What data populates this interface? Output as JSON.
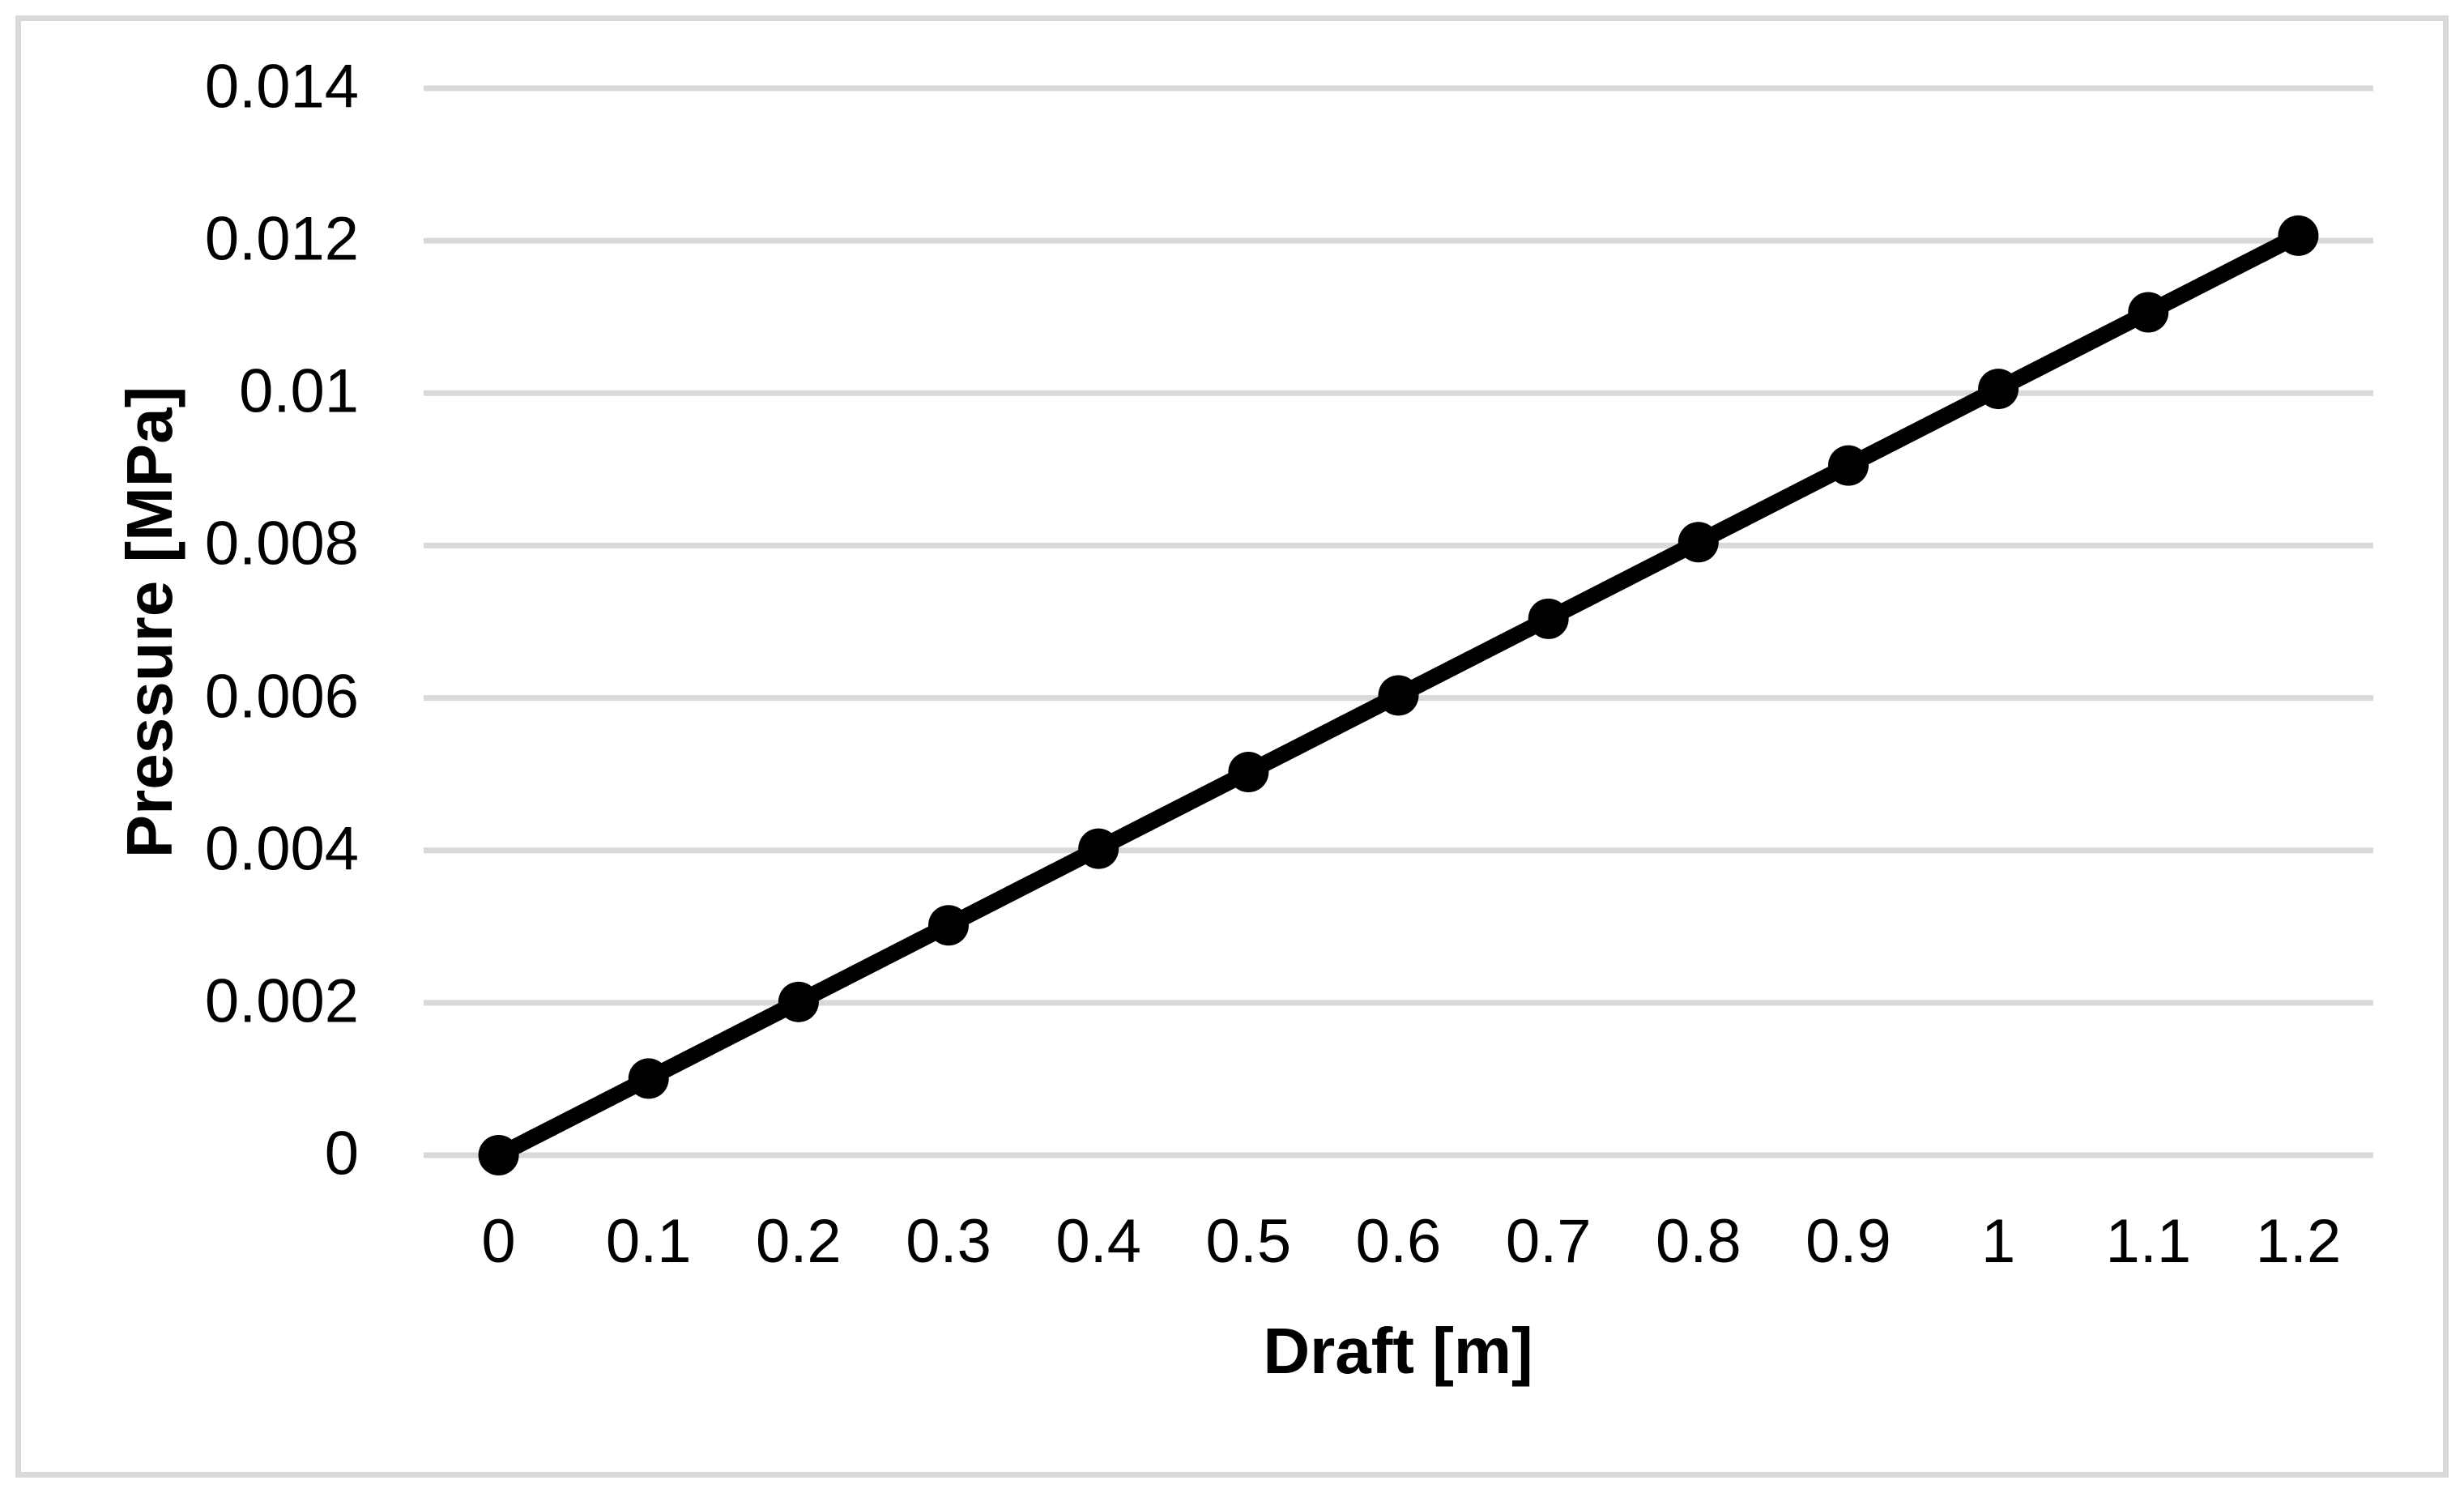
{
  "chart_data": {
    "type": "line",
    "title": "",
    "xlabel": "Draft [m]",
    "ylabel": "Pressure [MPa]",
    "categories": [
      "0",
      "0.1",
      "0.2",
      "0.3",
      "0.4",
      "0.5",
      "0.6",
      "0.7",
      "0.8",
      "0.9",
      "1",
      "1.1",
      "1.2"
    ],
    "x": [
      0,
      0.1,
      0.2,
      0.3,
      0.4,
      0.5,
      0.6,
      0.7,
      0.8,
      0.9,
      1,
      1.1,
      1.2
    ],
    "series": [
      {
        "values": [
          0,
          0.0010055,
          0.0020111,
          0.0030166,
          0.0040221,
          0.0050276,
          0.0060332,
          0.0070387,
          0.0080442,
          0.0090497,
          0.0100553,
          0.0110608,
          0.0120663
        ],
        "marker": "circle",
        "marker_diameter": 50,
        "line_width": 20
      }
    ],
    "ylim": [
      0,
      0.014
    ],
    "ytick_step": 0.002,
    "y_tick_values": [
      0,
      0.002,
      0.004,
      0.006,
      0.008,
      0.01,
      0.012,
      0.014
    ],
    "y_tick_labels": [
      "0",
      "0.002",
      "0.004",
      "0.006",
      "0.008",
      "0.01",
      "0.012",
      "0.014"
    ],
    "grid": "horizontal",
    "legend": false,
    "colors": {
      "line": "#000000",
      "marker": "#000000",
      "gridline": "#d9d9d9",
      "axis_line": "#d9d9d9",
      "chart_border": "#d9d9d9",
      "text": "#000000",
      "background": "#ffffff"
    }
  }
}
